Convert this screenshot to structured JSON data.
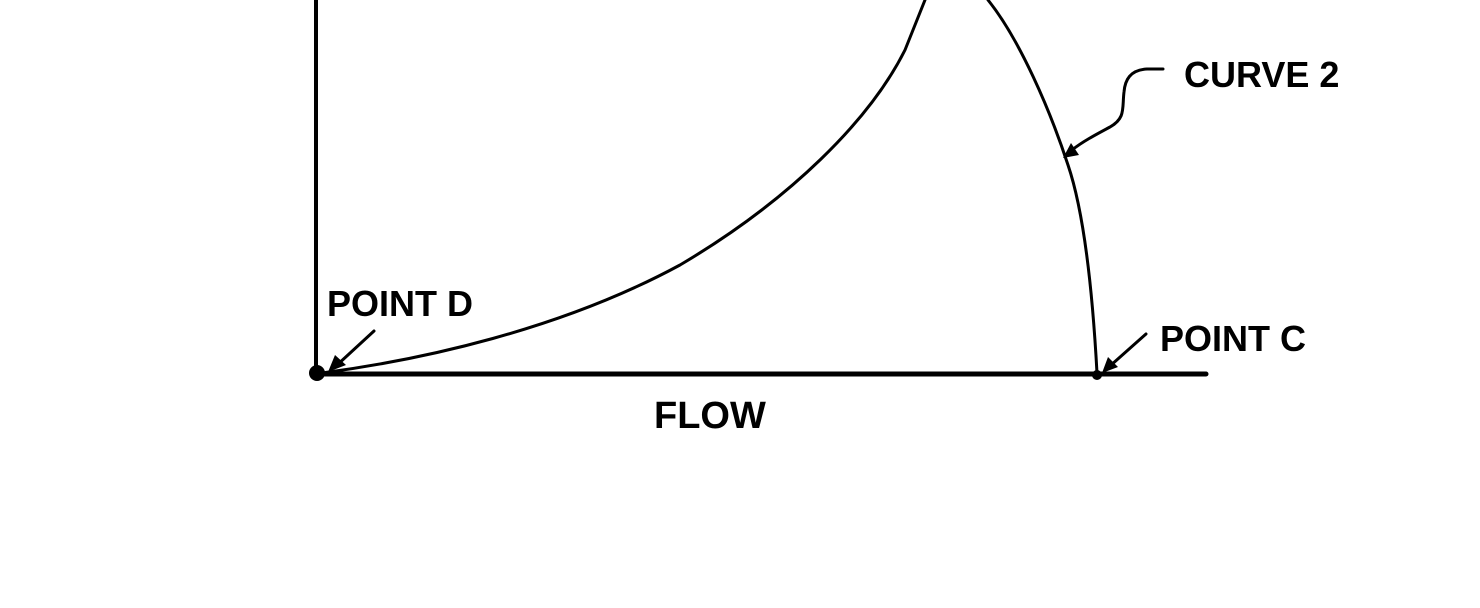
{
  "diagram": {
    "x_axis_label": "FLOW",
    "annotations": {
      "point_d": "POINT D",
      "point_c": "POINT C",
      "curve_2": "CURVE 2"
    },
    "line_color": "#000000",
    "background_color": "#ffffff"
  }
}
